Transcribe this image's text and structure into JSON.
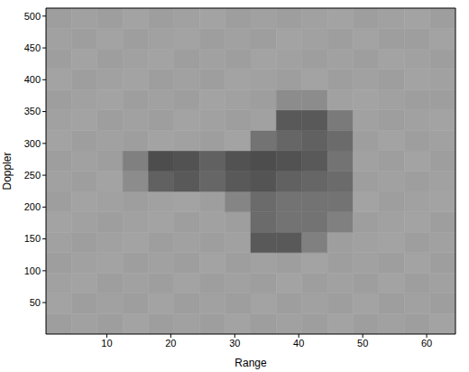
{
  "chart_data": {
    "type": "heatmap",
    "xlabel": "Range",
    "ylabel": "Doppler",
    "xlim": [
      0.5,
      64.5
    ],
    "ylim": [
      0.5,
      512.5
    ],
    "xticks": [
      10,
      20,
      30,
      40,
      50,
      60
    ],
    "yticks": [
      50,
      100,
      150,
      200,
      250,
      300,
      350,
      400,
      450,
      500
    ],
    "grid": false,
    "x_bins": [
      0.5,
      4.5,
      8.5,
      12.5,
      16.5,
      20.5,
      24.5,
      28.5,
      32.5,
      36.5,
      40.5,
      44.5,
      48.5,
      52.5,
      56.5,
      60.5,
      64.5
    ],
    "y_bins": [
      0.5,
      32.5,
      64.5,
      96.5,
      128.5,
      160.5,
      192.5,
      224.5,
      256.5,
      288.5,
      320.5,
      352.5,
      384.5,
      416.5,
      448.5,
      480.5,
      512.5
    ],
    "z": [
      [
        0.62,
        0.63,
        0.62,
        0.64,
        0.62,
        0.63,
        0.62,
        0.64,
        0.62,
        0.63,
        0.62,
        0.64,
        0.62,
        0.63,
        0.62,
        0.64
      ],
      [
        0.64,
        0.62,
        0.63,
        0.62,
        0.64,
        0.62,
        0.63,
        0.62,
        0.64,
        0.62,
        0.63,
        0.62,
        0.64,
        0.62,
        0.63,
        0.62
      ],
      [
        0.63,
        0.64,
        0.62,
        0.63,
        0.62,
        0.64,
        0.62,
        0.63,
        0.62,
        0.64,
        0.62,
        0.63,
        0.62,
        0.64,
        0.62,
        0.63
      ],
      [
        0.62,
        0.63,
        0.64,
        0.62,
        0.63,
        0.62,
        0.64,
        0.62,
        0.63,
        0.62,
        0.64,
        0.62,
        0.63,
        0.62,
        0.64,
        0.62
      ],
      [
        0.63,
        0.62,
        0.63,
        0.64,
        0.62,
        0.63,
        0.62,
        0.63,
        0.35,
        0.35,
        0.5,
        0.62,
        0.63,
        0.64,
        0.62,
        0.63
      ],
      [
        0.64,
        0.63,
        0.62,
        0.63,
        0.64,
        0.62,
        0.63,
        0.62,
        0.42,
        0.45,
        0.45,
        0.5,
        0.62,
        0.63,
        0.64,
        0.62
      ],
      [
        0.62,
        0.64,
        0.63,
        0.62,
        0.63,
        0.64,
        0.62,
        0.52,
        0.42,
        0.45,
        0.45,
        0.45,
        0.64,
        0.62,
        0.63,
        0.64
      ],
      [
        0.63,
        0.62,
        0.64,
        0.55,
        0.38,
        0.35,
        0.4,
        0.35,
        0.33,
        0.38,
        0.4,
        0.42,
        0.62,
        0.63,
        0.62,
        0.63
      ],
      [
        0.62,
        0.63,
        0.62,
        0.5,
        0.3,
        0.32,
        0.38,
        0.32,
        0.3,
        0.32,
        0.35,
        0.45,
        0.63,
        0.62,
        0.64,
        0.62
      ],
      [
        0.64,
        0.62,
        0.63,
        0.62,
        0.64,
        0.63,
        0.62,
        0.64,
        0.45,
        0.4,
        0.38,
        0.42,
        0.62,
        0.64,
        0.62,
        0.63
      ],
      [
        0.63,
        0.64,
        0.62,
        0.63,
        0.62,
        0.64,
        0.63,
        0.62,
        0.63,
        0.35,
        0.35,
        0.48,
        0.63,
        0.62,
        0.63,
        0.64
      ],
      [
        0.62,
        0.63,
        0.64,
        0.62,
        0.63,
        0.62,
        0.64,
        0.63,
        0.62,
        0.55,
        0.55,
        0.63,
        0.64,
        0.63,
        0.62,
        0.62
      ],
      [
        0.64,
        0.62,
        0.63,
        0.64,
        0.62,
        0.63,
        0.62,
        0.64,
        0.63,
        0.62,
        0.64,
        0.62,
        0.63,
        0.62,
        0.64,
        0.63
      ],
      [
        0.62,
        0.64,
        0.62,
        0.63,
        0.64,
        0.62,
        0.63,
        0.62,
        0.64,
        0.63,
        0.62,
        0.63,
        0.62,
        0.64,
        0.63,
        0.62
      ],
      [
        0.63,
        0.62,
        0.64,
        0.62,
        0.63,
        0.64,
        0.62,
        0.63,
        0.62,
        0.64,
        0.63,
        0.62,
        0.64,
        0.62,
        0.62,
        0.64
      ],
      [
        0.62,
        0.63,
        0.62,
        0.64,
        0.62,
        0.63,
        0.64,
        0.62,
        0.63,
        0.62,
        0.63,
        0.64,
        0.62,
        0.63,
        0.64,
        0.62
      ]
    ]
  }
}
